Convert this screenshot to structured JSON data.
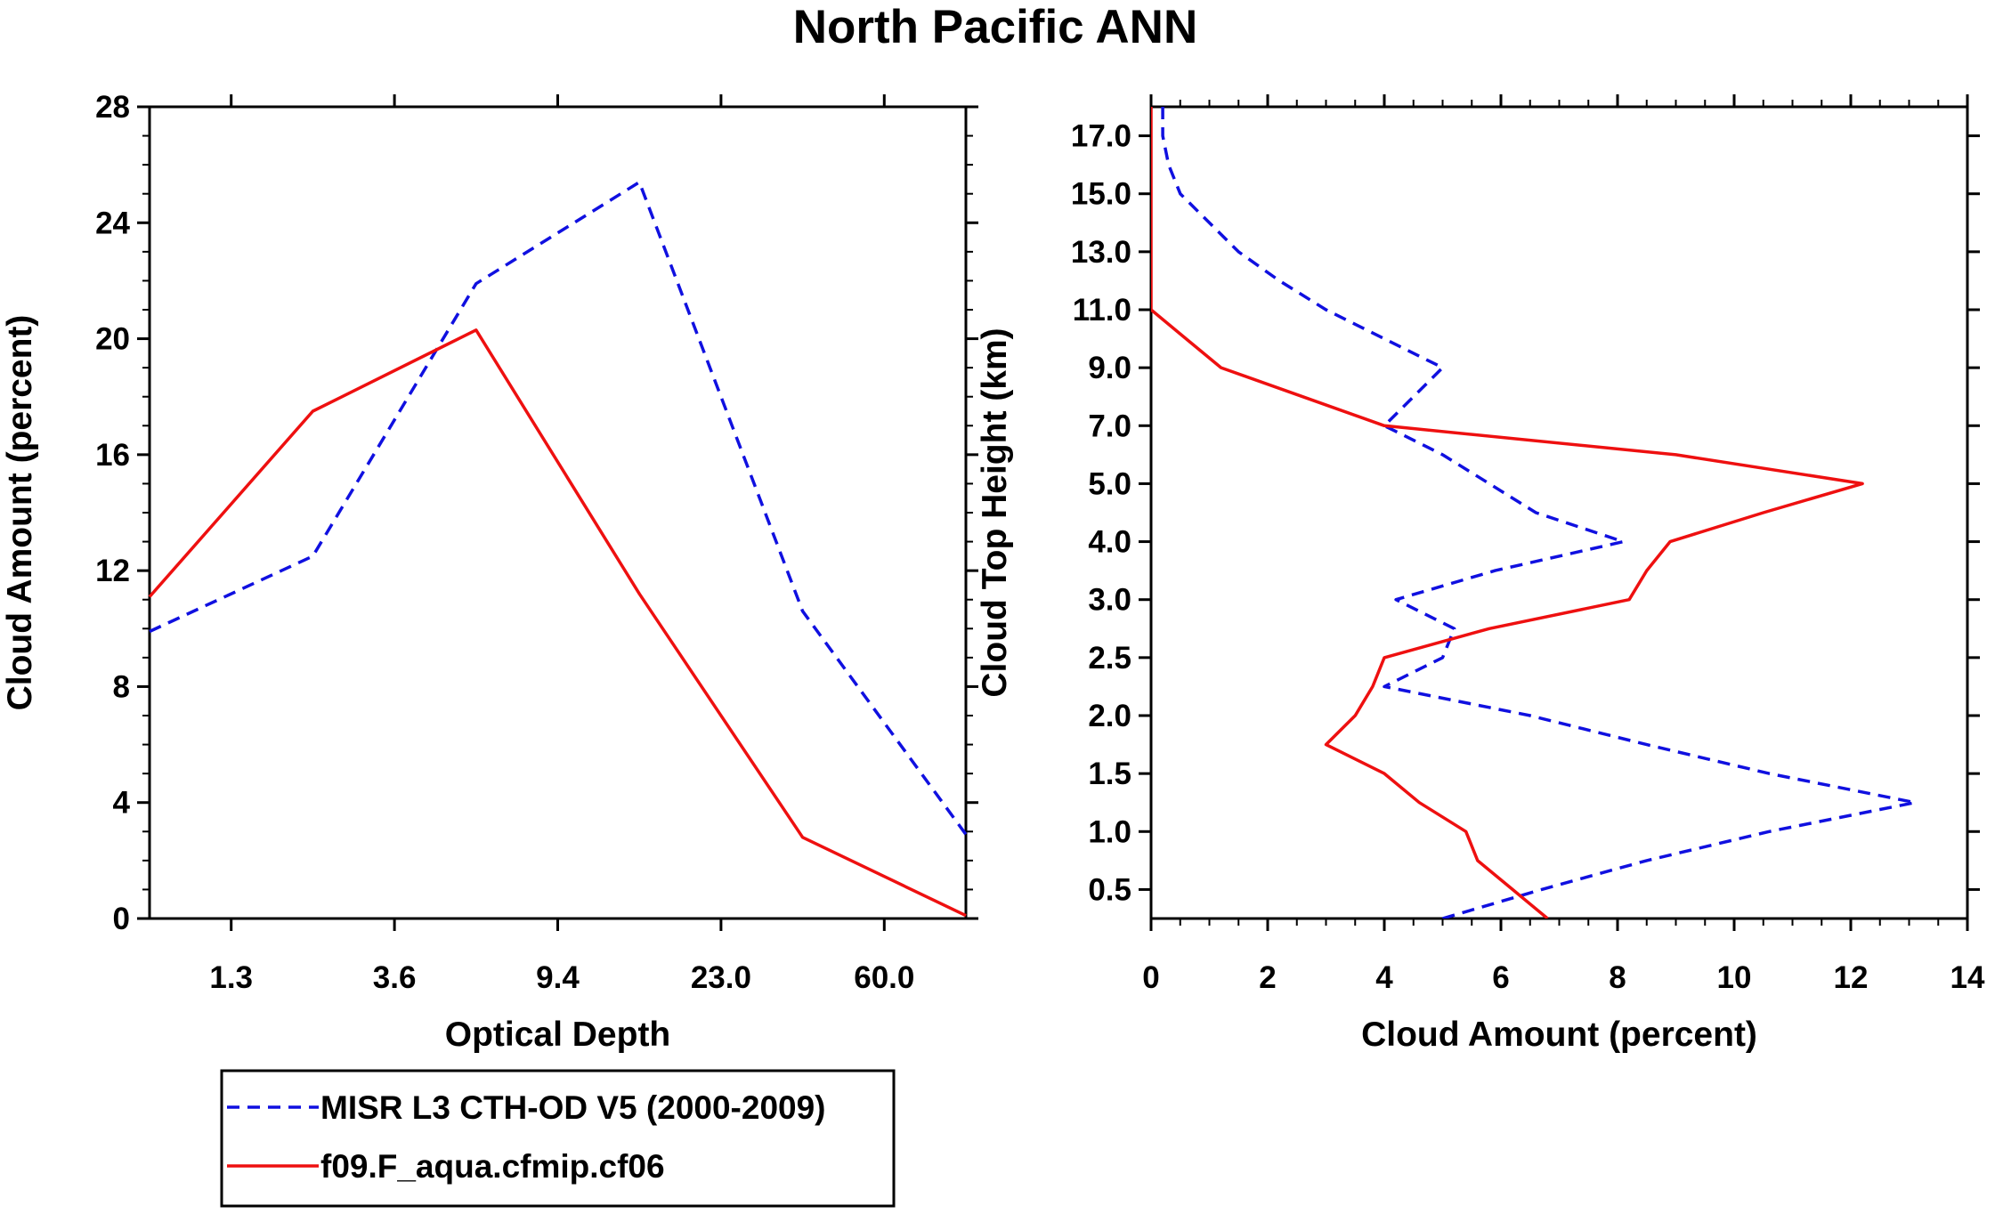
{
  "chart_data": [
    {
      "type": "line",
      "panel": "left",
      "title": "North Pacific ANN",
      "xlabel": "Optical Depth",
      "ylabel": "Cloud Amount (percent)",
      "x_categories": [
        "",
        "1.3",
        "",
        "3.6",
        "",
        "9.4",
        "",
        "23.0",
        "",
        "60.0",
        ""
      ],
      "x_tick_labels": [
        "1.3",
        "3.6",
        "9.4",
        "23.0",
        "60.0"
      ],
      "x_tick_label_positions": [
        1,
        3,
        5,
        7,
        9
      ],
      "xlim": [
        0,
        10
      ],
      "ylim": [
        0,
        28
      ],
      "y_ticks": [
        0,
        4,
        8,
        12,
        16,
        20,
        24,
        28
      ],
      "y_tick_labels": [
        "0",
        "4",
        "8",
        "12",
        "16",
        "20",
        "24",
        "28"
      ],
      "series": [
        {
          "name": "MISR L3 CTH-OD V5 (2000-2009)",
          "style": "dashed",
          "color": "#1010e0",
          "x": [
            0,
            2,
            4,
            6,
            8,
            10
          ],
          "values": [
            9.9,
            12.5,
            21.9,
            25.4,
            10.6,
            2.9
          ]
        },
        {
          "name": "f09.F_aqua.cfmip.cf06",
          "style": "solid",
          "color": "#ee1010",
          "x": [
            0,
            2,
            4,
            6,
            8,
            10
          ],
          "values": [
            11.1,
            17.5,
            20.3,
            11.2,
            2.8,
            0.1
          ]
        }
      ]
    },
    {
      "type": "line",
      "panel": "right",
      "xlabel": "Cloud Amount (percent)",
      "ylabel": "Cloud Top Height (km)",
      "xlim": [
        0,
        14
      ],
      "x_ticks": [
        0,
        2,
        4,
        6,
        8,
        10,
        12,
        14
      ],
      "x_tick_labels": [
        "0",
        "2",
        "4",
        "6",
        "8",
        "10",
        "12",
        "14"
      ],
      "y_categories": [
        "0.5",
        "1.0",
        "1.5",
        "2.0",
        "2.5",
        "3.0",
        "4.0",
        "5.0",
        "7.0",
        "9.0",
        "11.0",
        "13.0",
        "15.0",
        "17.0"
      ],
      "ylim": [
        -0.5,
        13.5
      ],
      "series": [
        {
          "name": "MISR L3 CTH-OD V5 (2000-2009)",
          "style": "dashed",
          "color": "#1010e0",
          "y": [
            -0.5,
            0,
            0.5,
            1,
            1.5,
            2,
            2.5,
            3,
            3.5,
            4,
            4.5,
            5,
            5.5,
            6,
            6.5,
            7,
            7.5,
            8,
            8.5,
            9,
            9.5,
            10,
            10.5,
            11,
            11.5,
            12,
            12.5,
            13,
            13.5
          ],
          "values": [
            5.0,
            6.7,
            8.5,
            10.6,
            13.1,
            10.6,
            8.5,
            6.5,
            4.0,
            5.0,
            5.2,
            4.2,
            5.9,
            8.1,
            6.6,
            5.8,
            5.0,
            4.0,
            4.5,
            5.0,
            4.0,
            3.0,
            2.2,
            1.5,
            1.0,
            0.5,
            0.3,
            0.2,
            0.2
          ],
          "y_display": "half-step"
        },
        {
          "name": "f09.F_aqua.cfmip.cf06",
          "style": "solid",
          "color": "#ee1010",
          "y": [
            -0.5,
            0.0,
            0.5,
            1.0,
            1.5,
            2.0,
            2.5,
            3.0,
            3.5,
            4.0,
            4.5,
            5.0,
            5.5,
            6.0,
            6.5,
            7.0,
            7.5,
            8.0,
            8.5,
            9.0,
            9.5,
            10.0,
            10.5,
            11.0,
            11.5,
            12.0,
            12.5,
            13.0,
            13.5
          ],
          "values": [
            6.8,
            6.2,
            5.6,
            5.4,
            4.6,
            4.0,
            3.0,
            3.5,
            3.8,
            4.0,
            5.8,
            8.2,
            8.5,
            8.9,
            10.5,
            12.2,
            9.0,
            4.0,
            2.6,
            1.2,
            0.6,
            0.0,
            0.0,
            0.0,
            0.0,
            0.0,
            0.0,
            0.0,
            0.0
          ]
        }
      ]
    }
  ],
  "legend": {
    "items": [
      {
        "label": "MISR L3 CTH-OD V5 (2000-2009)",
        "style": "dashed",
        "color": "#1010e0"
      },
      {
        "label": "f09.F_aqua.cfmip.cf06",
        "style": "solid",
        "color": "#ee1010"
      }
    ]
  }
}
